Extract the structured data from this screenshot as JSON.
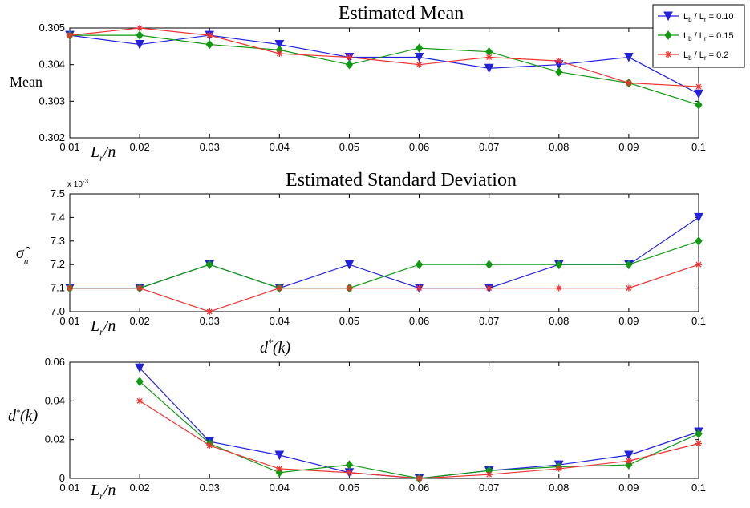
{
  "chart_data": [
    {
      "type": "line",
      "title": "Estimated Mean",
      "ylabel": "Mean",
      "xlabel": "L_r/n",
      "x": [
        0.01,
        0.02,
        0.03,
        0.04,
        0.05,
        0.06,
        0.07,
        0.08,
        0.09,
        0.1
      ],
      "xtick_labels": [
        "0.01",
        "0.02",
        "0.03",
        "0.04",
        "0.05",
        "0.06",
        "0.07",
        "0.08",
        "0.09",
        "0.1"
      ],
      "ylim": [
        0.302,
        0.305
      ],
      "ytick_values": [
        0.302,
        0.303,
        0.304,
        0.305
      ],
      "ytick_labels": [
        "0.302",
        "0.303",
        "0.304",
        "0.305"
      ],
      "grid": false,
      "legend_position": "top-right (outside plot)",
      "series": [
        {
          "name": "L_b / L_r = 0.10",
          "color": "#2222dd",
          "marker": "triangle-down",
          "values": [
            0.3048,
            0.30455,
            0.3048,
            0.30455,
            0.3042,
            0.3042,
            0.3039,
            0.304,
            0.3042,
            0.3032
          ]
        },
        {
          "name": "L_b / L_r = 0.15",
          "color": "#119911",
          "marker": "diamond",
          "values": [
            0.3048,
            0.3048,
            0.30455,
            0.3044,
            0.304,
            0.30445,
            0.30435,
            0.3038,
            0.3035,
            0.3029
          ]
        },
        {
          "name": "L_b / L_r = 0.2",
          "color": "#ee3333",
          "marker": "star",
          "values": [
            0.3048,
            0.305,
            0.3048,
            0.3043,
            0.3042,
            0.304,
            0.3042,
            0.3041,
            0.3035,
            0.3034
          ]
        }
      ]
    },
    {
      "type": "line",
      "title": "Estimated Standard Deviation",
      "ylabel": "σ̂_n",
      "xlabel": "L_r/n",
      "multiplier": "x 10-3",
      "x": [
        0.01,
        0.02,
        0.03,
        0.04,
        0.05,
        0.06,
        0.07,
        0.08,
        0.09,
        0.1
      ],
      "xtick_labels": [
        "0.01",
        "0.02",
        "0.03",
        "0.04",
        "0.05",
        "0.06",
        "0.07",
        "0.08",
        "0.09",
        "0.1"
      ],
      "ylim": [
        7.0,
        7.5
      ],
      "ytick_values": [
        7.0,
        7.1,
        7.2,
        7.3,
        7.4,
        7.5
      ],
      "ytick_labels": [
        "7.0",
        "7.1",
        "7.2",
        "7.3",
        "7.4",
        "7.5"
      ],
      "grid": false,
      "series": [
        {
          "name": "L_b / L_r = 0.10",
          "color": "#2222dd",
          "marker": "triangle-down",
          "values": [
            7.1,
            7.1,
            7.2,
            7.1,
            7.2,
            7.1,
            7.1,
            7.2,
            7.2,
            7.4
          ]
        },
        {
          "name": "L_b / L_r = 0.15",
          "color": "#119911",
          "marker": "diamond",
          "values": [
            7.1,
            7.1,
            7.2,
            7.1,
            7.1,
            7.2,
            7.2,
            7.2,
            7.2,
            7.3
          ]
        },
        {
          "name": "L_b / L_r = 0.2",
          "color": "#ee3333",
          "marker": "star",
          "values": [
            7.1,
            7.1,
            7.0,
            7.1,
            7.1,
            7.1,
            7.1,
            7.1,
            7.1,
            7.2
          ]
        }
      ]
    },
    {
      "type": "line",
      "title": "d*(k)",
      "ylabel": "d*(k)",
      "xlabel": "L_r/n",
      "x": [
        0.01,
        0.02,
        0.03,
        0.04,
        0.05,
        0.06,
        0.07,
        0.08,
        0.09,
        0.1
      ],
      "xtick_labels": [
        "0.01",
        "0.02",
        "0.03",
        "0.04",
        "0.05",
        "0.06",
        "0.07",
        "0.08",
        "0.09",
        "0.1"
      ],
      "ylim": [
        0,
        0.06
      ],
      "ytick_values": [
        0,
        0.02,
        0.04,
        0.06
      ],
      "ytick_labels": [
        "0",
        "0.02",
        "0.04",
        "0.06"
      ],
      "grid": false,
      "series": [
        {
          "name": "L_b / L_r = 0.10",
          "color": "#2222dd",
          "marker": "triangle-down",
          "values": [
            null,
            0.057,
            0.019,
            0.012,
            0.003,
            0.0,
            0.004,
            0.007,
            0.012,
            0.024
          ]
        },
        {
          "name": "L_b / L_r = 0.15",
          "color": "#119911",
          "marker": "diamond",
          "values": [
            null,
            0.05,
            0.018,
            0.003,
            0.007,
            0.0,
            0.004,
            0.006,
            0.007,
            0.023
          ]
        },
        {
          "name": "L_b / L_r = 0.2",
          "color": "#ee3333",
          "marker": "star",
          "values": [
            null,
            0.04,
            0.017,
            0.005,
            0.003,
            0.0,
            0.002,
            0.005,
            0.009,
            0.018
          ]
        }
      ]
    }
  ]
}
